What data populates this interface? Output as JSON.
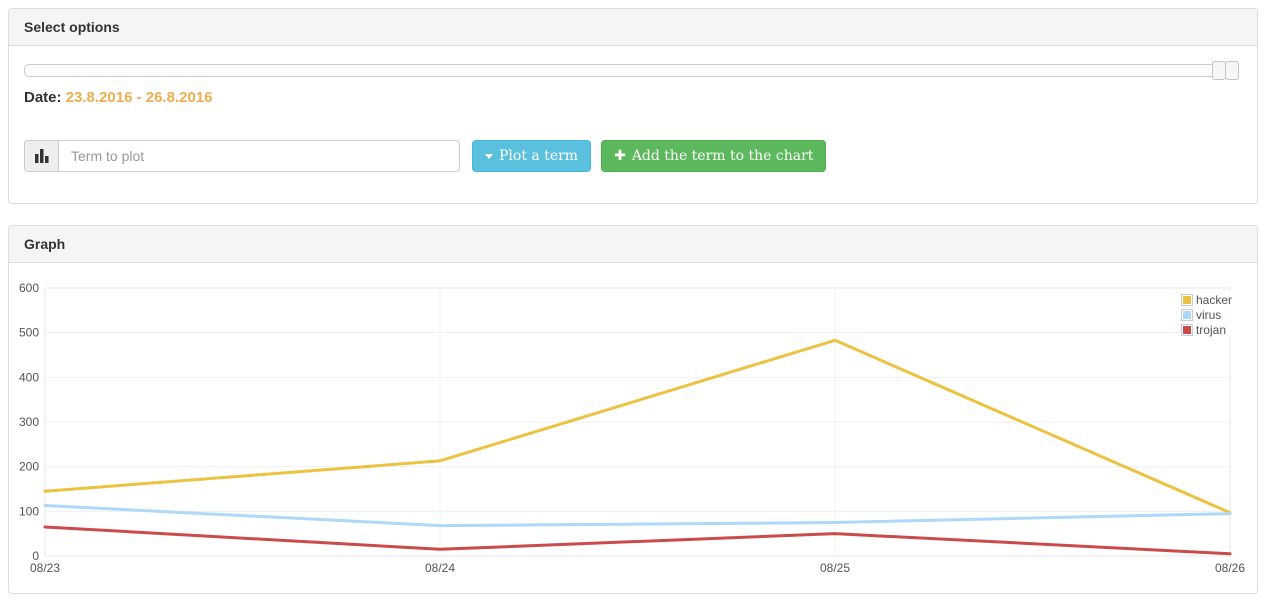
{
  "select_options": {
    "title": "Select options",
    "date_label": "Date:",
    "date_range": "23.8.2016 - 26.8.2016",
    "date_range_color": "#f0ad4e",
    "term_input": {
      "value": "",
      "placeholder": "Term to plot"
    },
    "plot_button_label": "Plot a term",
    "plot_button_color": "#5bc0de",
    "add_button_label": "Add the term to the chart",
    "add_button_color": "#5cb85c"
  },
  "graph": {
    "title": "Graph"
  },
  "chart_data": {
    "type": "line",
    "x_tick_labels": [
      "08/23",
      "08/24",
      "08/25",
      "08/26"
    ],
    "y_ticks": [
      0,
      100,
      200,
      300,
      400,
      500,
      600
    ],
    "ylim": [
      0,
      600
    ],
    "grid": true,
    "legend_position": "top-right",
    "axis_text_color": "#545454",
    "grid_color": "#f0f0f0",
    "border_color": "#e7e7e7",
    "series": [
      {
        "name": "hacker",
        "color": "#edc240",
        "values": [
          145,
          213,
          483,
          97
        ]
      },
      {
        "name": "virus",
        "color": "#afd8f8",
        "values": [
          113,
          68,
          75,
          95
        ]
      },
      {
        "name": "trojan",
        "color": "#cb4b4b",
        "values": [
          65,
          15,
          50,
          5
        ]
      }
    ]
  }
}
